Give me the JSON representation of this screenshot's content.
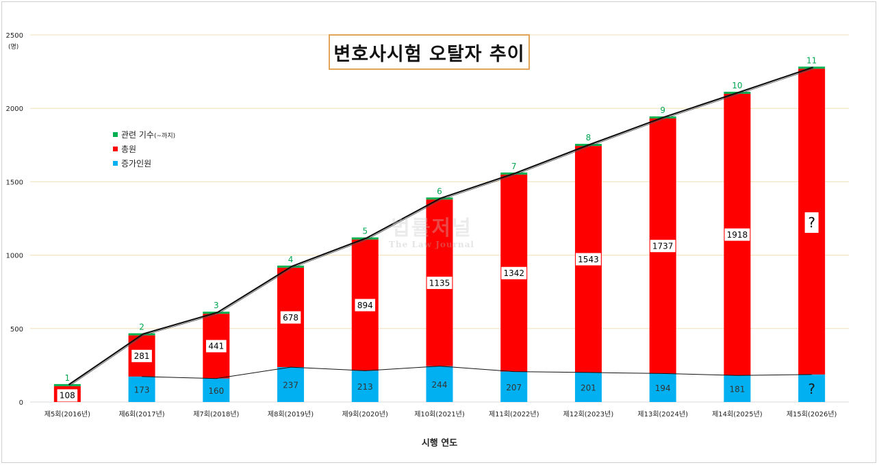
{
  "chart_data": {
    "type": "bar",
    "title": "변호사시험 오탈자 추이",
    "xlabel": "시행 연도",
    "ylabel": "(명)",
    "ylim": [
      0,
      2500
    ],
    "yticks": [
      "0",
      "500",
      "1000",
      "1500",
      "2000",
      "2500"
    ],
    "categories": [
      "제5회(2016년)",
      "제6회(2017년)",
      "제7회(2018년)",
      "제8회(2019년)",
      "제9회(2020년)",
      "제10회(2021년)",
      "제11회(2022년)",
      "제12회(2023년)",
      "제13회(2024년)",
      "제14회(2025년)",
      "제15회(2026년)"
    ],
    "series": [
      {
        "name": "증가인원",
        "color": "#00b0f0",
        "values": [
          null,
          173,
          160,
          237,
          213,
          244,
          207,
          201,
          194,
          181,
          null
        ],
        "labels": [
          "",
          "173",
          "160",
          "237",
          "213",
          "244",
          "207",
          "201",
          "194",
          "181",
          "?"
        ]
      },
      {
        "name": "총원",
        "color": "#ff0000",
        "values": [
          108,
          281,
          441,
          678,
          894,
          1135,
          1342,
          1543,
          1737,
          1918,
          null
        ],
        "labels": [
          "108",
          "281",
          "441",
          "678",
          "894",
          "1135",
          "1342",
          "1543",
          "1737",
          "1918",
          "?"
        ]
      },
      {
        "name": "관련 기수(~까지)",
        "color": "#00b050",
        "values": [
          1,
          2,
          3,
          4,
          5,
          6,
          7,
          8,
          9,
          10,
          11
        ],
        "labels": [
          "1",
          "2",
          "3",
          "4",
          "5",
          "6",
          "7",
          "8",
          "9",
          "10",
          "11"
        ]
      }
    ],
    "estimated_totals": [
      108,
      454,
      601,
      915,
      1107,
      1379,
      1549,
      1744,
      1931,
      2099,
      2270
    ],
    "estimated_blue_heights": [
      0,
      173,
      160,
      237,
      213,
      244,
      207,
      201,
      194,
      181,
      187
    ],
    "legend": {
      "position": "left",
      "items": [
        {
          "label": "관련 기수",
          "suffix": "(~까지)",
          "color": "#00b050"
        },
        {
          "label": "총원",
          "color": "#ff0000"
        },
        {
          "label": "증가인원",
          "color": "#00b0f0"
        }
      ]
    }
  },
  "watermark": {
    "line1": "법률저널",
    "line2": "The Law Journal"
  }
}
